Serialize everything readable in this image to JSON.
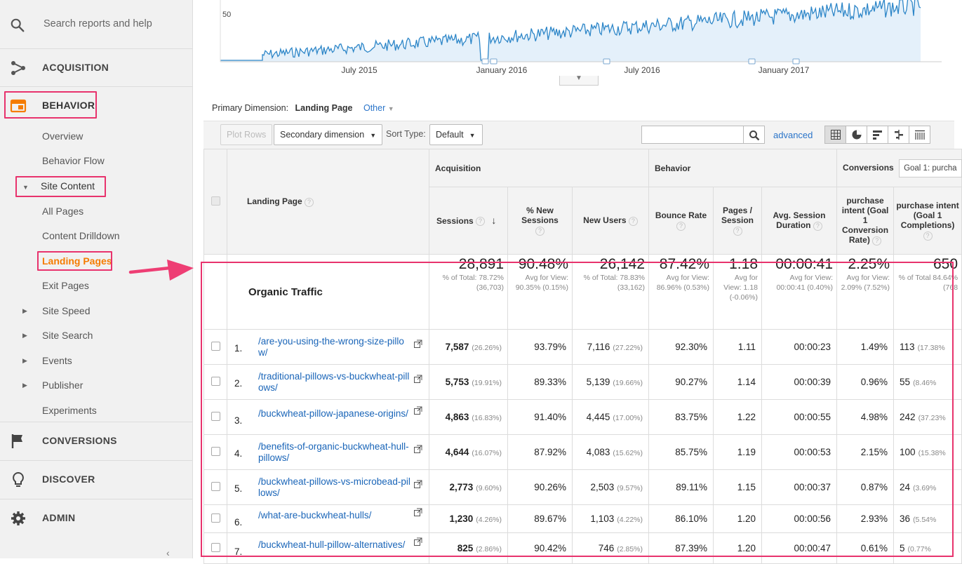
{
  "sidebar": {
    "search_placeholder": "Search reports and help",
    "sections": {
      "acquisition": "ACQUISITION",
      "behavior": "BEHAVIOR",
      "conversions": "CONVERSIONS",
      "discover": "DISCOVER",
      "admin": "ADMIN"
    },
    "behavior_items": {
      "overview": "Overview",
      "behavior_flow": "Behavior Flow",
      "site_content": "Site Content",
      "all_pages": "All Pages",
      "content_drilldown": "Content Drilldown",
      "landing_pages": "Landing Pages",
      "exit_pages": "Exit Pages",
      "site_speed": "Site Speed",
      "site_search": "Site Search",
      "events": "Events",
      "publisher": "Publisher",
      "experiments": "Experiments"
    },
    "collapse_glyph": "‹"
  },
  "chart": {
    "y_tick": "50",
    "x_ticks": [
      "July 2015",
      "January 2016",
      "July 2016",
      "January 2017"
    ],
    "line_color": "#2d86c8",
    "area_color": "#e4f0fa"
  },
  "dimension_bar": {
    "label": "Primary Dimension:",
    "value": "Landing Page",
    "other": "Other"
  },
  "toolbar": {
    "plot_rows": "Plot Rows",
    "secondary_dimension": "Secondary dimension",
    "sort_type_label": "Sort Type:",
    "sort_type_value": "Default",
    "advanced": "advanced"
  },
  "table": {
    "groups": {
      "acquisition": "Acquisition",
      "behavior": "Behavior",
      "conversions": "Conversions",
      "goal_select": "Goal 1: purcha"
    },
    "columns": {
      "landing_page": "Landing Page",
      "sessions": "Sessions",
      "pct_new_sessions": "% New Sessions",
      "new_users": "New Users",
      "bounce_rate": "Bounce Rate",
      "pages_session": "Pages / Session",
      "avg_session_duration": "Avg. Session Duration",
      "goal_conv_rate": "purchase intent (Goal 1 Conversion Rate)",
      "goal_completions": "purchase intent (Goal 1 Completions)"
    },
    "totals": {
      "name": "Organic Traffic",
      "sessions": "28,891",
      "sessions_sub": "% of Total: 78.72% (36,703)",
      "pct_new": "90.48%",
      "pct_new_sub": "Avg for View: 90.35% (0.15%)",
      "new_users": "26,142",
      "new_users_sub": "% of Total: 78.83% (33,162)",
      "bounce": "87.42%",
      "bounce_sub": "Avg for View: 86.96% (0.53%)",
      "pages": "1.18",
      "pages_sub": "Avg for View: 1.18 (-0.06%)",
      "duration": "00:00:41",
      "duration_sub": "Avg for View: 00:00:41 (0.40%)",
      "conv_rate": "2.25%",
      "conv_rate_sub": "Avg for View: 2.09% (7.52%)",
      "completions": "650",
      "completions_sub": "% of Total 84.64% (768"
    },
    "rows": [
      {
        "n": "1.",
        "page": "/are-you-using-the-wrong-size-pillow/",
        "sessions": "7,587",
        "sessions_pct": "(26.26%)",
        "pct_new": "93.79%",
        "new_users": "7,116",
        "new_users_pct": "(27.22%)",
        "bounce": "92.30%",
        "pages": "1.11",
        "duration": "00:00:23",
        "conv": "1.49%",
        "comp": "113",
        "comp_pct": "(17.38%"
      },
      {
        "n": "2.",
        "page": "/traditional-pillows-vs-buckwheat-pillows/",
        "sessions": "5,753",
        "sessions_pct": "(19.91%)",
        "pct_new": "89.33%",
        "new_users": "5,139",
        "new_users_pct": "(19.66%)",
        "bounce": "90.27%",
        "pages": "1.14",
        "duration": "00:00:39",
        "conv": "0.96%",
        "comp": "55",
        "comp_pct": "(8.46%"
      },
      {
        "n": "3.",
        "page": "/buckwheat-pillow-japanese-origins/",
        "sessions": "4,863",
        "sessions_pct": "(16.83%)",
        "pct_new": "91.40%",
        "new_users": "4,445",
        "new_users_pct": "(17.00%)",
        "bounce": "83.75%",
        "pages": "1.22",
        "duration": "00:00:55",
        "conv": "4.98%",
        "comp": "242",
        "comp_pct": "(37.23%"
      },
      {
        "n": "4.",
        "page": "/benefits-of-organic-buckwheat-hull-pillows/",
        "sessions": "4,644",
        "sessions_pct": "(16.07%)",
        "pct_new": "87.92%",
        "new_users": "4,083",
        "new_users_pct": "(15.62%)",
        "bounce": "85.75%",
        "pages": "1.19",
        "duration": "00:00:53",
        "conv": "2.15%",
        "comp": "100",
        "comp_pct": "(15.38%"
      },
      {
        "n": "5.",
        "page": "/buckwheat-pillows-vs-microbead-pillows/",
        "sessions": "2,773",
        "sessions_pct": "(9.60%)",
        "pct_new": "90.26%",
        "new_users": "2,503",
        "new_users_pct": "(9.57%)",
        "bounce": "89.11%",
        "pages": "1.15",
        "duration": "00:00:37",
        "conv": "0.87%",
        "comp": "24",
        "comp_pct": "(3.69%"
      },
      {
        "n": "6.",
        "page": "/what-are-buckwheat-hulls/",
        "sessions": "1,230",
        "sessions_pct": "(4.26%)",
        "pct_new": "89.67%",
        "new_users": "1,103",
        "new_users_pct": "(4.22%)",
        "bounce": "86.10%",
        "pages": "1.20",
        "duration": "00:00:56",
        "conv": "2.93%",
        "comp": "36",
        "comp_pct": "(5.54%"
      },
      {
        "n": "7.",
        "page": "/buckwheat-hull-pillow-alternatives/",
        "sessions": "825",
        "sessions_pct": "(2.86%)",
        "pct_new": "90.42%",
        "new_users": "746",
        "new_users_pct": "(2.85%)",
        "bounce": "87.39%",
        "pages": "1.20",
        "duration": "00:00:47",
        "conv": "0.61%",
        "comp": "5",
        "comp_pct": "(0.77%"
      }
    ]
  },
  "accent_colors": {
    "highlight": "#e8336d",
    "active_item": "#f57c00",
    "link": "#1a65b8"
  }
}
